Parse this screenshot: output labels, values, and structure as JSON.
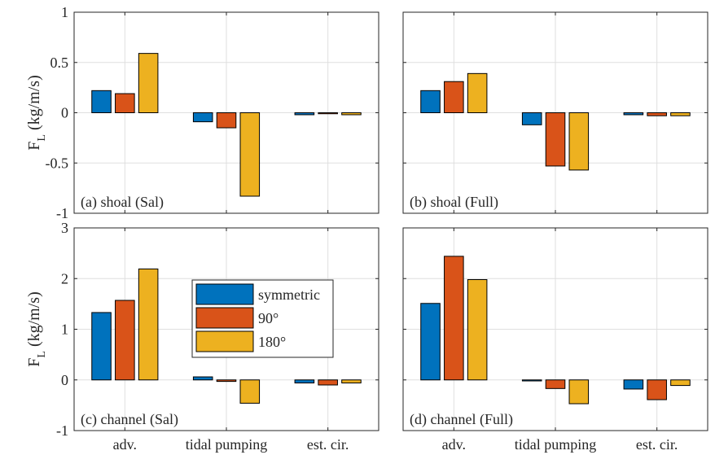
{
  "colors": [
    "#0072BD",
    "#D95319",
    "#EDB120"
  ],
  "chart_data": [
    {
      "type": "bar",
      "panel_label": "(a) shoal (Sal)",
      "ylabel": "F",
      "ylabel_sub": "L",
      "ylabel_unit": "(kg/m/s)",
      "ylim": [
        -1,
        1
      ],
      "yticks": [
        -1,
        -0.5,
        0,
        0.5,
        1
      ],
      "ytick_labels": [
        "-1",
        "-0.5",
        "0",
        "0.5",
        "1"
      ],
      "categories": [
        "adv.",
        "tidal pumping",
        "est. cir."
      ],
      "grid": true,
      "series": [
        {
          "name": "symmetric",
          "values": [
            0.22,
            -0.09,
            -0.02
          ]
        },
        {
          "name": "90°",
          "values": [
            0.19,
            -0.15,
            -0.01
          ]
        },
        {
          "name": "180°",
          "values": [
            0.59,
            -0.83,
            -0.02
          ]
        }
      ]
    },
    {
      "type": "bar",
      "panel_label": "(b) shoal (Full)",
      "ylim": [
        -1,
        1
      ],
      "yticks": [
        -1,
        -0.5,
        0,
        0.5,
        1
      ],
      "categories": [
        "adv.",
        "tidal pumping",
        "est. cir."
      ],
      "grid": true,
      "series": [
        {
          "name": "symmetric",
          "values": [
            0.22,
            -0.12,
            -0.02
          ]
        },
        {
          "name": "90°",
          "values": [
            0.31,
            -0.53,
            -0.03
          ]
        },
        {
          "name": "180°",
          "values": [
            0.39,
            -0.57,
            -0.03
          ]
        }
      ]
    },
    {
      "type": "bar",
      "panel_label": "(c) channel (Sal)",
      "ylabel": "F",
      "ylabel_sub": "L",
      "ylabel_unit": "(kg/m/s)",
      "ylim": [
        -1,
        3
      ],
      "yticks": [
        -1,
        0,
        1,
        2,
        3
      ],
      "ytick_labels": [
        "-1",
        "0",
        "1",
        "2",
        "3"
      ],
      "categories": [
        "adv.",
        "tidal pumping",
        "est. cir."
      ],
      "xtick_labels": [
        "adv.",
        "tidal pumping",
        "est. cir."
      ],
      "grid": true,
      "legend": {
        "position": "center",
        "entries": [
          "symmetric",
          "90°",
          "180°"
        ]
      },
      "series": [
        {
          "name": "symmetric",
          "values": [
            1.33,
            0.06,
            -0.06
          ]
        },
        {
          "name": "90°",
          "values": [
            1.57,
            -0.03,
            -0.1
          ]
        },
        {
          "name": "180°",
          "values": [
            2.19,
            -0.46,
            -0.06
          ]
        }
      ]
    },
    {
      "type": "bar",
      "panel_label": "(d) channel (Full)",
      "ylim": [
        -1,
        3
      ],
      "yticks": [
        -1,
        0,
        1,
        2,
        3
      ],
      "categories": [
        "adv.",
        "tidal pumping",
        "est. cir."
      ],
      "xtick_labels": [
        "adv.",
        "tidal pumping",
        "est. cir."
      ],
      "grid": true,
      "series": [
        {
          "name": "symmetric",
          "values": [
            1.51,
            -0.02,
            -0.18
          ]
        },
        {
          "name": "90°",
          "values": [
            2.44,
            -0.17,
            -0.39
          ]
        },
        {
          "name": "180°",
          "values": [
            1.98,
            -0.47,
            -0.11
          ]
        }
      ]
    }
  ]
}
